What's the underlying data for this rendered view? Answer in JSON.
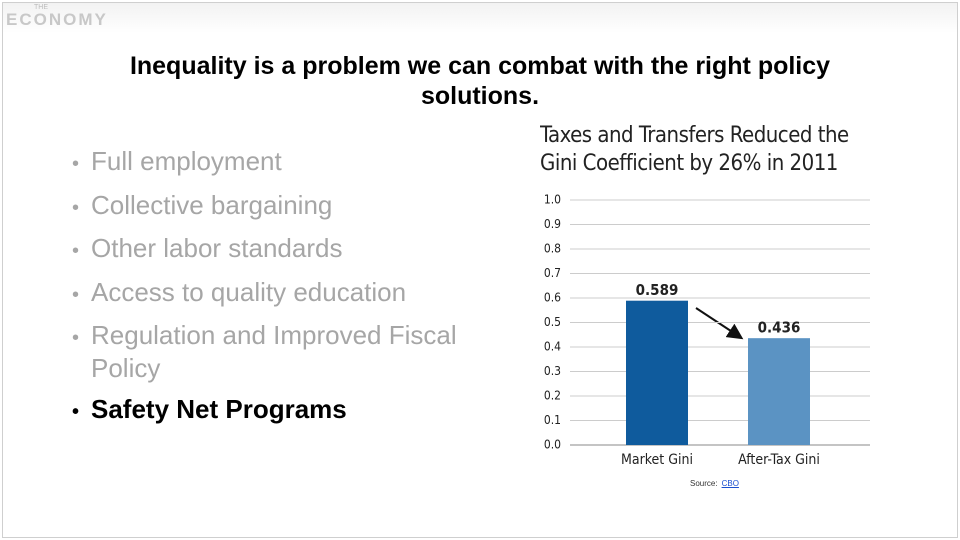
{
  "logo": {
    "small": "THE",
    "name": "ECONOMY"
  },
  "title": "Inequality is a problem we can combat with the right policy solutions.",
  "bullets": [
    "Full employment",
    "Collective bargaining",
    "Other labor standards",
    "Access to quality education",
    "Regulation and Improved Fiscal Policy",
    "Safety Net Programs"
  ],
  "chart_data": {
    "type": "bar",
    "title": "Taxes and Transfers Reduced the Gini Coefficient by 26% in 2011",
    "categories": [
      "Market Gini",
      "After-Tax Gini"
    ],
    "values": [
      0.589,
      0.436
    ],
    "colors": [
      "#0f5b9d",
      "#5b93c3"
    ],
    "ylim": [
      0,
      1
    ],
    "yticks": [
      {
        "value": 0,
        "label": "0.0"
      },
      0.1,
      0.2,
      0.3,
      0.4,
      0.5,
      0.6,
      0.7,
      0.8,
      0.9,
      {
        "value": 1,
        "label": "1.0"
      }
    ],
    "grid": true
  },
  "source": {
    "label": "Source:",
    "link": "CBO"
  }
}
